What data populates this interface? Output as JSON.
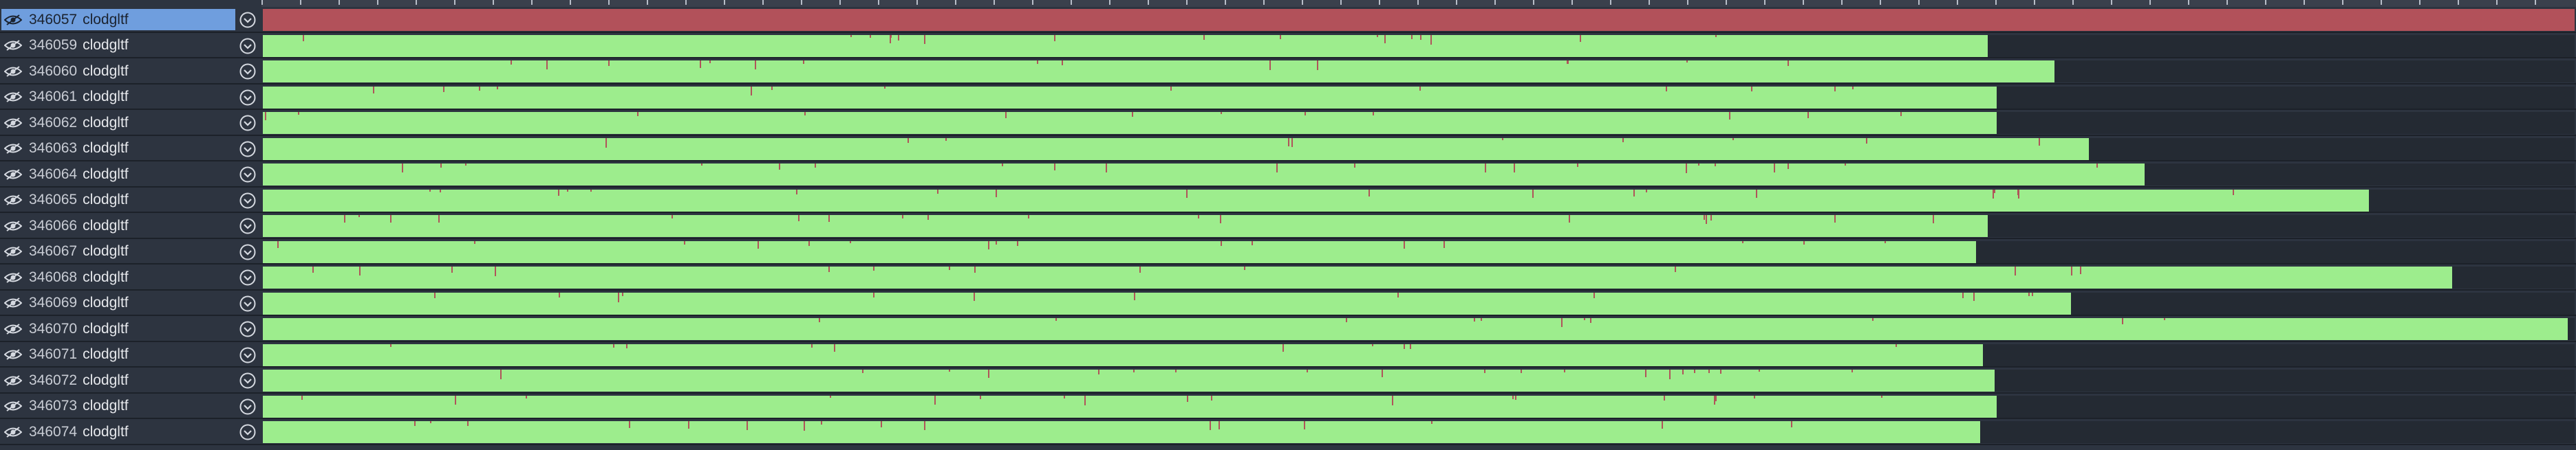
{
  "colors": {
    "background": "#2d3440",
    "selected_label": "#6f9ede",
    "bar_green": "#9ded8d",
    "bar_red": "#b2515a",
    "spike": "#b0545a"
  },
  "icons": {
    "visibility": "eye-icon",
    "expand": "chevron-down-icon"
  },
  "rows": [
    {
      "id": "346057",
      "name": "clodgltf",
      "fill": 1.0,
      "color": "red",
      "selected": true
    },
    {
      "id": "346059",
      "name": "clodgltf",
      "fill": 0.746,
      "color": "green"
    },
    {
      "id": "346060",
      "name": "clodgltf",
      "fill": 0.775,
      "color": "green"
    },
    {
      "id": "346061",
      "name": "clodgltf",
      "fill": 0.75,
      "color": "green"
    },
    {
      "id": "346062",
      "name": "clodgltf",
      "fill": 0.75,
      "color": "green"
    },
    {
      "id": "346063",
      "name": "clodgltf",
      "fill": 0.79,
      "color": "green"
    },
    {
      "id": "346064",
      "name": "clodgltf",
      "fill": 0.814,
      "color": "green"
    },
    {
      "id": "346065",
      "name": "clodgltf",
      "fill": 0.911,
      "color": "green"
    },
    {
      "id": "346066",
      "name": "clodgltf",
      "fill": 0.746,
      "color": "green"
    },
    {
      "id": "346067",
      "name": "clodgltf",
      "fill": 0.741,
      "color": "green"
    },
    {
      "id": "346068",
      "name": "clodgltf",
      "fill": 0.947,
      "color": "green"
    },
    {
      "id": "346069",
      "name": "clodgltf",
      "fill": 0.782,
      "color": "green"
    },
    {
      "id": "346070",
      "name": "clodgltf",
      "fill": 0.997,
      "color": "green"
    },
    {
      "id": "346071",
      "name": "clodgltf",
      "fill": 0.744,
      "color": "green"
    },
    {
      "id": "346072",
      "name": "clodgltf",
      "fill": 0.749,
      "color": "green"
    },
    {
      "id": "346073",
      "name": "clodgltf",
      "fill": 0.75,
      "color": "green"
    },
    {
      "id": "346074",
      "name": "clodgltf",
      "fill": 0.743,
      "color": "green"
    }
  ]
}
